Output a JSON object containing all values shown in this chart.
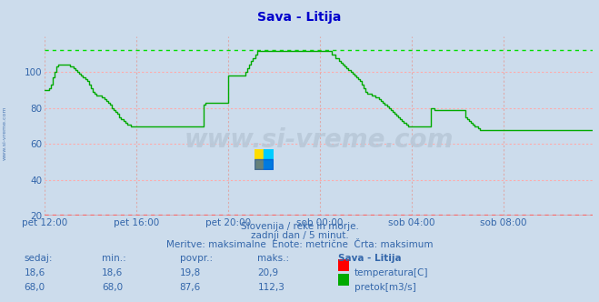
{
  "title": "Sava - Litija",
  "bg_color": "#ccdcec",
  "plot_bg_color": "#ccdcec",
  "x_labels": [
    "pet 12:00",
    "pet 16:00",
    "pet 20:00",
    "sob 00:00",
    "sob 04:00",
    "sob 08:00"
  ],
  "x_ticks_pos": [
    0,
    48,
    96,
    144,
    192,
    240
  ],
  "total_points": 289,
  "ylim": [
    20,
    120
  ],
  "yticks": [
    20,
    40,
    60,
    80,
    100
  ],
  "hline_max_green": 112.3,
  "hline_max_red": 20.9,
  "red_line_color": "#cc0000",
  "green_line_color": "#00aa00",
  "red_dashed_color": "#ff8888",
  "green_dashed_color": "#00dd00",
  "grid_h_color": "#ffaaaa",
  "grid_v_color": "#ddaaaa",
  "text_color": "#3366aa",
  "title_color": "#0000cc",
  "subtitle1": "Slovenija / reke in morje.",
  "subtitle2": "zadnji dan / 5 minut.",
  "subtitle3": "Meritve: maksimalne  Enote: metrične  Črta: maksimum",
  "legend_title": "Sava - Litija",
  "label_temp": "temperatura[C]",
  "label_pretok": "pretok[m3/s]",
  "sedaj_label": "sedaj:",
  "min_label": "min.:",
  "povpr_label": "povpr.:",
  "maks_label": "maks.:",
  "temp_sedaj": "18,6",
  "temp_min": "18,6",
  "temp_povpr": "19,8",
  "temp_maks": "20,9",
  "pretok_sedaj": "68,0",
  "pretok_min": "68,0",
  "pretok_povpr": "87,6",
  "pretok_maks": "112,3",
  "watermark": "www.si-vreme.com",
  "green_data": [
    90,
    90,
    91,
    93,
    97,
    100,
    103,
    104,
    104,
    104,
    104,
    104,
    104,
    103,
    103,
    102,
    101,
    100,
    99,
    98,
    97,
    96,
    95,
    93,
    91,
    89,
    88,
    87,
    87,
    87,
    86,
    85,
    84,
    83,
    82,
    80,
    79,
    78,
    77,
    75,
    74,
    73,
    72,
    71,
    71,
    70,
    70,
    70,
    70,
    70,
    70,
    70,
    70,
    70,
    70,
    70,
    70,
    70,
    70,
    70,
    70,
    70,
    70,
    70,
    70,
    70,
    70,
    70,
    70,
    70,
    70,
    70,
    70,
    70,
    70,
    70,
    70,
    70,
    70,
    70,
    70,
    70,
    70,
    82,
    83,
    83,
    83,
    83,
    83,
    83,
    83,
    83,
    83,
    83,
    83,
    83,
    98,
    98,
    98,
    98,
    98,
    98,
    98,
    98,
    98,
    100,
    102,
    104,
    106,
    108,
    110,
    112,
    112,
    112,
    112,
    112,
    112,
    112,
    112,
    112,
    112,
    112,
    112,
    112,
    112,
    112,
    112,
    112,
    112,
    112,
    112,
    112,
    112,
    112,
    112,
    112,
    112,
    112,
    112,
    112,
    112,
    112,
    112,
    112,
    112,
    112,
    112,
    112,
    112,
    112,
    110,
    110,
    108,
    108,
    106,
    105,
    104,
    103,
    102,
    101,
    100,
    99,
    98,
    97,
    96,
    95,
    93,
    91,
    89,
    88,
    88,
    87,
    87,
    86,
    86,
    85,
    84,
    83,
    82,
    81,
    80,
    79,
    78,
    77,
    76,
    75,
    74,
    73,
    72,
    71,
    70,
    70,
    70,
    70,
    70,
    70,
    70,
    70,
    70,
    70,
    70,
    70,
    80,
    80,
    79,
    79,
    79,
    79,
    79,
    79,
    79,
    79,
    79,
    79,
    79,
    79,
    79,
    79,
    79,
    79,
    75,
    74,
    73,
    72,
    71,
    70,
    70,
    69,
    68,
    68,
    68,
    68,
    68,
    68,
    68,
    68,
    68,
    68,
    68,
    68,
    68,
    68,
    68,
    68,
    68,
    68,
    68,
    68,
    68,
    68,
    68,
    68,
    68,
    68,
    68,
    68,
    68,
    68,
    68,
    68,
    68,
    68,
    68,
    68,
    68,
    68,
    68,
    68,
    68,
    68,
    68,
    68,
    68,
    68,
    68,
    68,
    68,
    68,
    68,
    68,
    68,
    68,
    68,
    68,
    68,
    68,
    68,
    68
  ],
  "red_data_value": 20
}
